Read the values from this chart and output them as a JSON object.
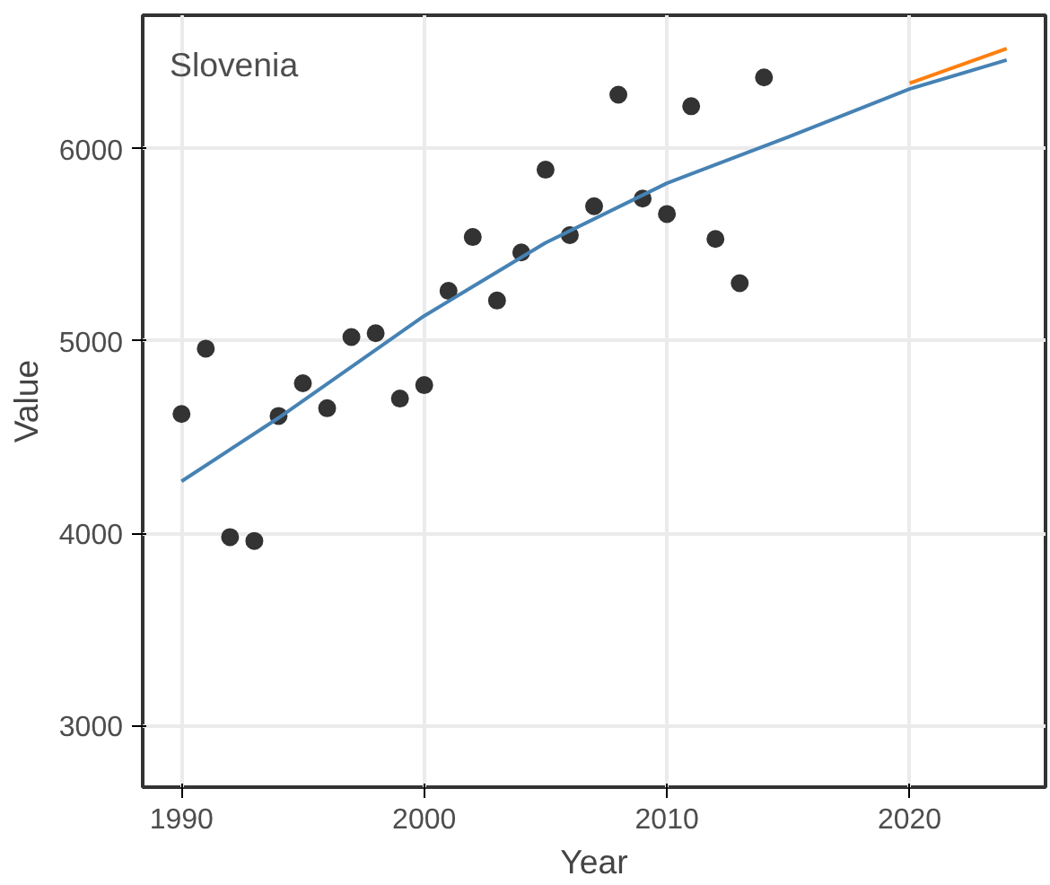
{
  "chart_data": {
    "type": "scatter",
    "xlabel": "Year",
    "ylabel": "Value",
    "annotations": [
      "Slovenia"
    ],
    "xlim": [
      1988.4,
      2025.6
    ],
    "ylim": [
      2680,
      6693
    ],
    "xticks": [
      1990,
      2000,
      2010,
      2020
    ],
    "yticks": [
      3000,
      4000,
      5000,
      6000
    ],
    "grid": true,
    "series": [
      {
        "color": "#333333",
        "marker": "circle",
        "x": [
          1990,
          1991,
          1992,
          1993,
          1994,
          1995,
          1996,
          1997,
          1998,
          1999,
          2000,
          2001,
          2002,
          2003,
          2004,
          2005,
          2006,
          2007,
          2008,
          2009,
          2010,
          2011,
          2012,
          2013,
          2014
        ],
        "values": [
          4620,
          4960,
          3980,
          3960,
          4610,
          4780,
          4650,
          5020,
          5040,
          4700,
          4770,
          5260,
          5540,
          5210,
          5460,
          5890,
          5550,
          5700,
          6280,
          5740,
          5660,
          6220,
          5530,
          5300,
          6370
        ]
      },
      {
        "type": "line",
        "color": "#ff7f0e",
        "x": [
          2020,
          2024
        ],
        "values": [
          6340,
          6520
        ]
      },
      {
        "type": "line",
        "color": "#4682b4",
        "x": [
          1990,
          1994,
          2000,
          2005,
          2010,
          2015,
          2020,
          2024
        ],
        "values": [
          4270,
          4600,
          5130,
          5510,
          5820,
          6060,
          6310,
          6460
        ]
      }
    ]
  }
}
